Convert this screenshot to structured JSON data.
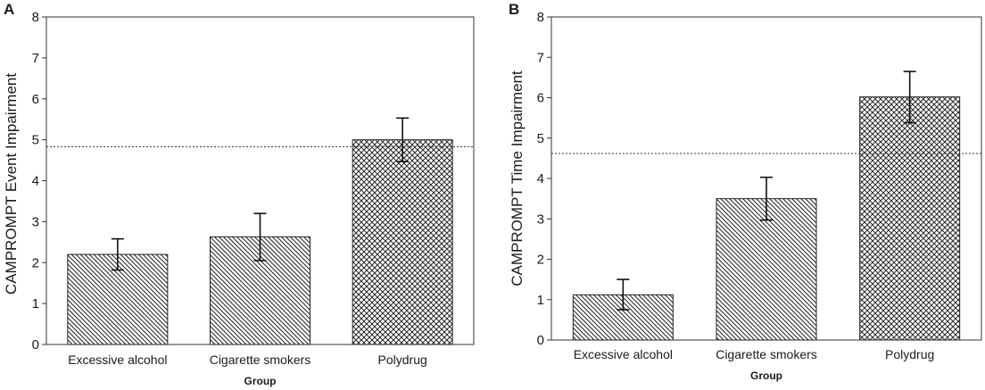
{
  "chart_data": [
    {
      "type": "bar",
      "panel_label": "A",
      "title": "",
      "xlabel": "Group",
      "ylabel": "CAMPROMPT Event Impairment",
      "ylim": [
        0,
        8
      ],
      "yticks": [
        "0",
        "1",
        "2",
        "3",
        "4",
        "5",
        "6",
        "7",
        "8"
      ],
      "categories": [
        "Excessive alcohol",
        "Cigarette smokers",
        "Polydrug"
      ],
      "values": [
        2.2,
        2.63,
        5.0
      ],
      "error_low": [
        1.82,
        2.05,
        4.47
      ],
      "error_high": [
        2.58,
        3.2,
        5.53
      ],
      "patterns": [
        "diagonal",
        "diagonal",
        "crosshatch"
      ],
      "reference_line": 4.83,
      "grid": false
    },
    {
      "type": "bar",
      "panel_label": "B",
      "title": "",
      "xlabel": "Group",
      "ylabel": "CAMPROMPT Time Impairment",
      "ylim": [
        0,
        8
      ],
      "yticks": [
        "0",
        "1",
        "2",
        "3",
        "4",
        "5",
        "6",
        "7",
        "8"
      ],
      "categories": [
        "Excessive alcohol",
        "Cigarette smokers",
        "Polydrug"
      ],
      "values": [
        1.12,
        3.5,
        6.02
      ],
      "error_low": [
        0.75,
        2.97,
        5.38
      ],
      "error_high": [
        1.5,
        4.03,
        6.65
      ],
      "patterns": [
        "diagonal",
        "diagonal",
        "crosshatch"
      ],
      "reference_line": 4.62,
      "grid": false
    }
  ]
}
